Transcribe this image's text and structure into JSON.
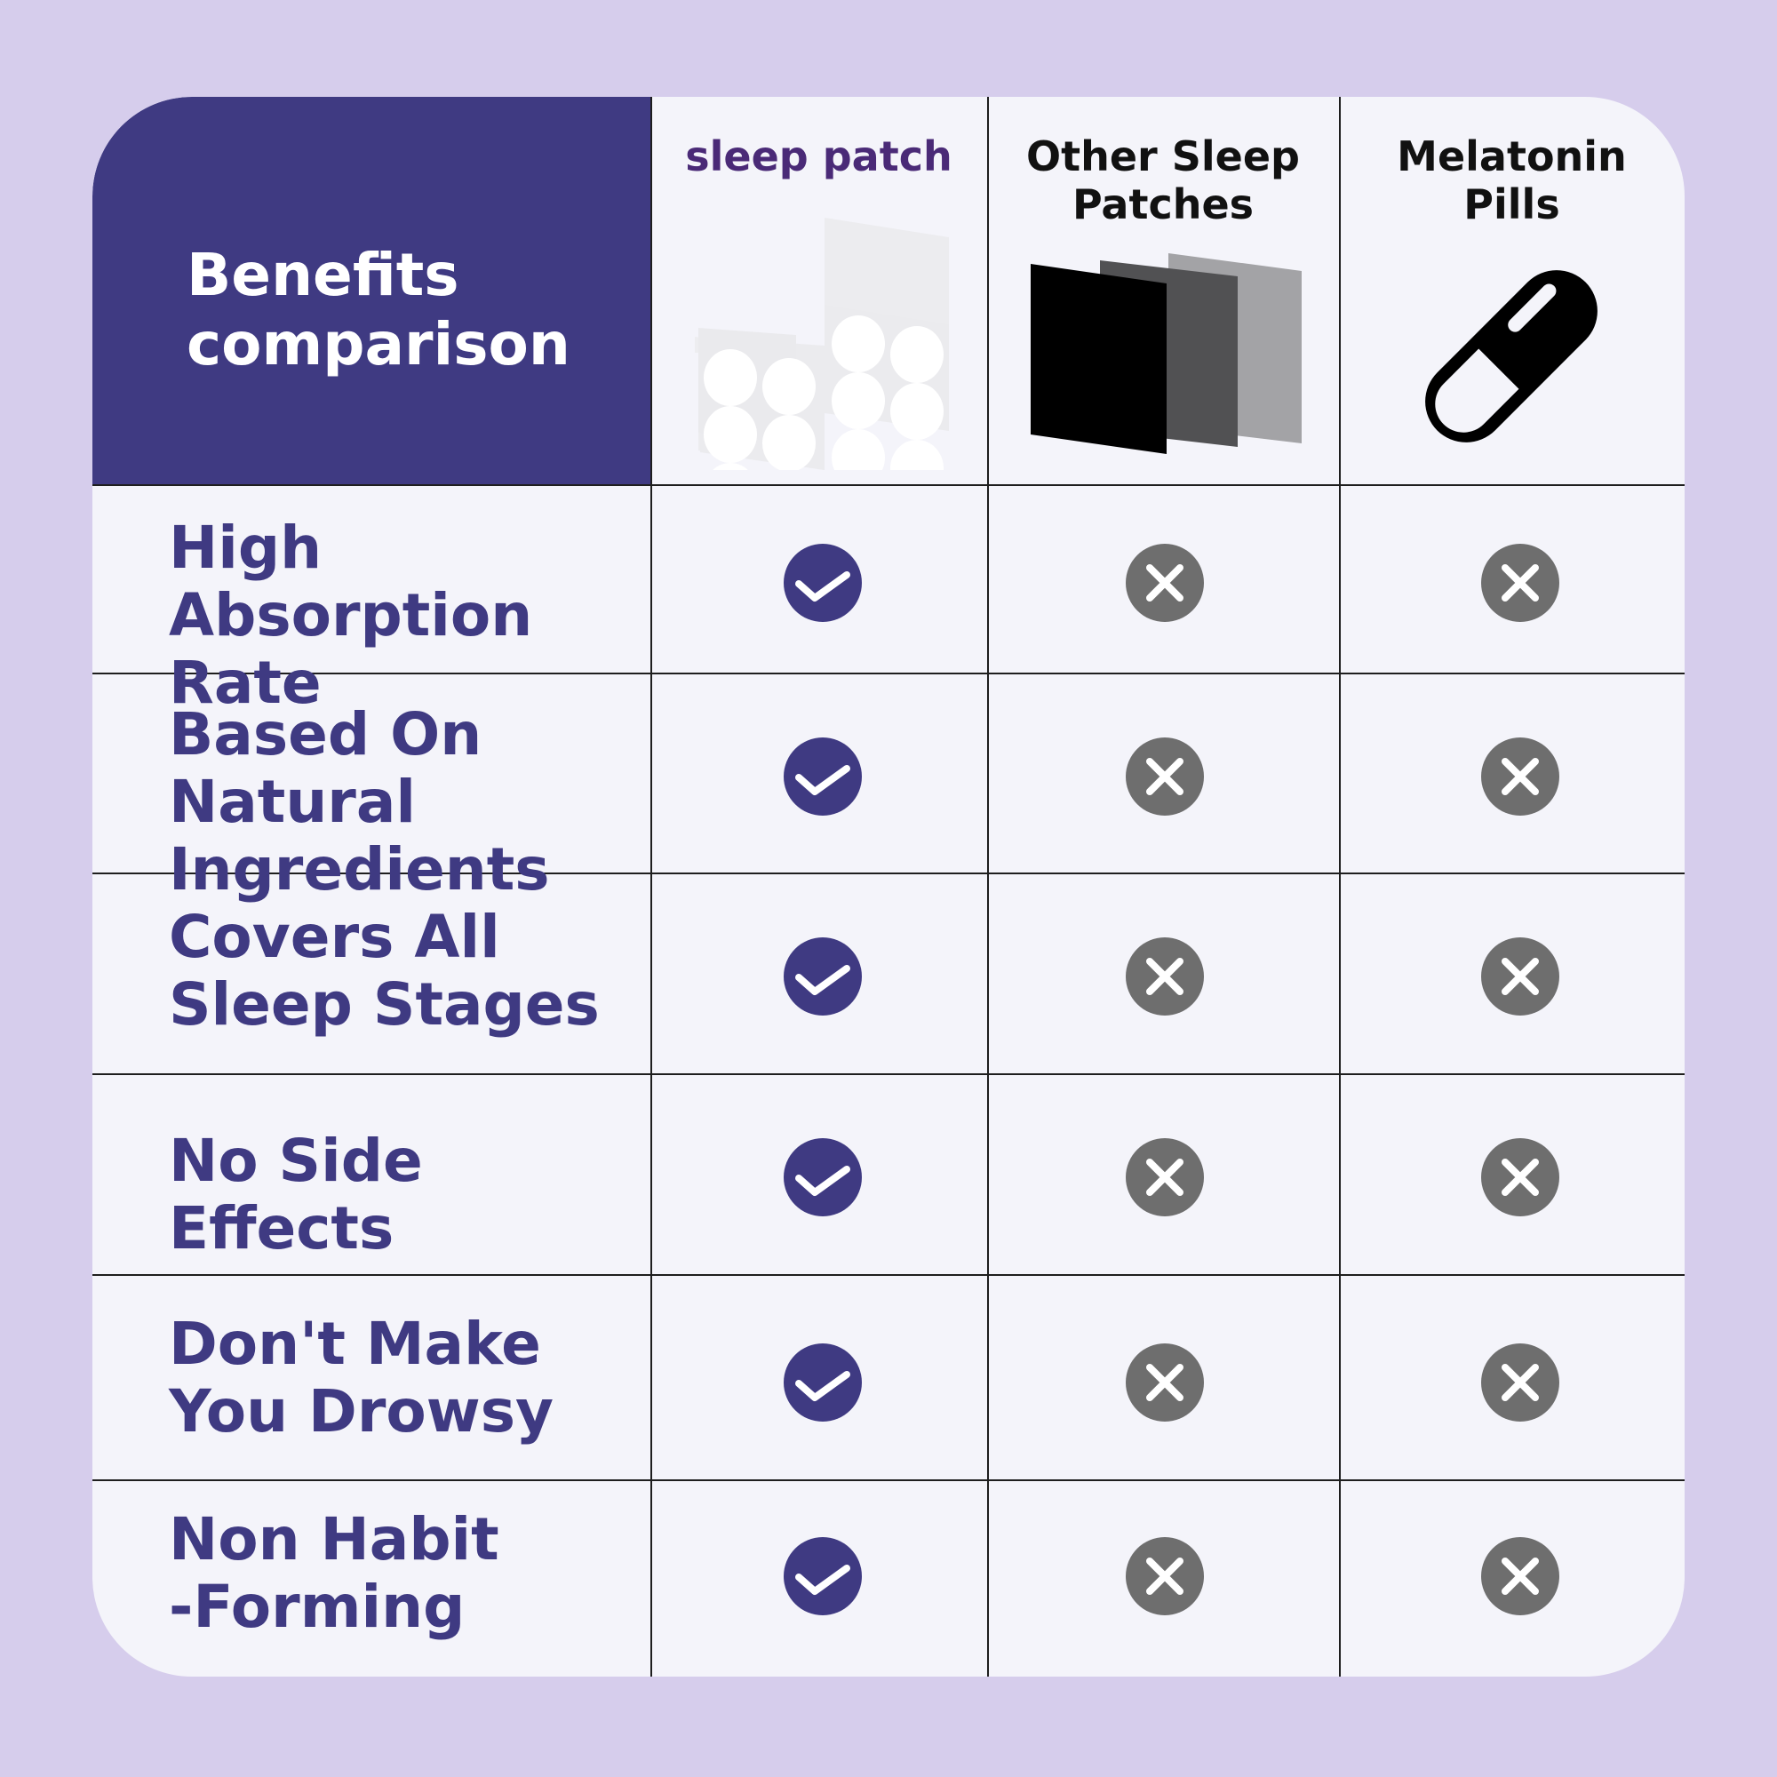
{
  "colors": {
    "background": "#d6cdec",
    "card": "#f4f4fa",
    "accent": "#3f3a82",
    "brand_text": "#4a2a77",
    "cross": "#6e6e6e"
  },
  "table": {
    "corner_title": "Benefits\ncomparison",
    "columns": [
      {
        "label": "sleep patch",
        "icon": "patch-sheet-icon"
      },
      {
        "label": "Other Sleep\nPatches",
        "icon": "layered-patches-icon"
      },
      {
        "label": "Melatonin\nPills",
        "icon": "capsule-icon"
      }
    ],
    "rows": [
      {
        "label": "High Absorption\nRate",
        "values": [
          "check",
          "cross",
          "cross"
        ]
      },
      {
        "label": "Based On Natural\nIngredients",
        "values": [
          "check",
          "cross",
          "cross"
        ]
      },
      {
        "label": "Covers All\nSleep Stages",
        "values": [
          "check",
          "cross",
          "cross"
        ]
      },
      {
        "label": "No Side Effects",
        "values": [
          "check",
          "cross",
          "cross"
        ]
      },
      {
        "label": "Don't Make\nYou Drowsy",
        "values": [
          "check",
          "cross",
          "cross"
        ]
      },
      {
        "label": "Non Habit\n-Forming",
        "values": [
          "check",
          "cross",
          "cross"
        ]
      }
    ]
  }
}
